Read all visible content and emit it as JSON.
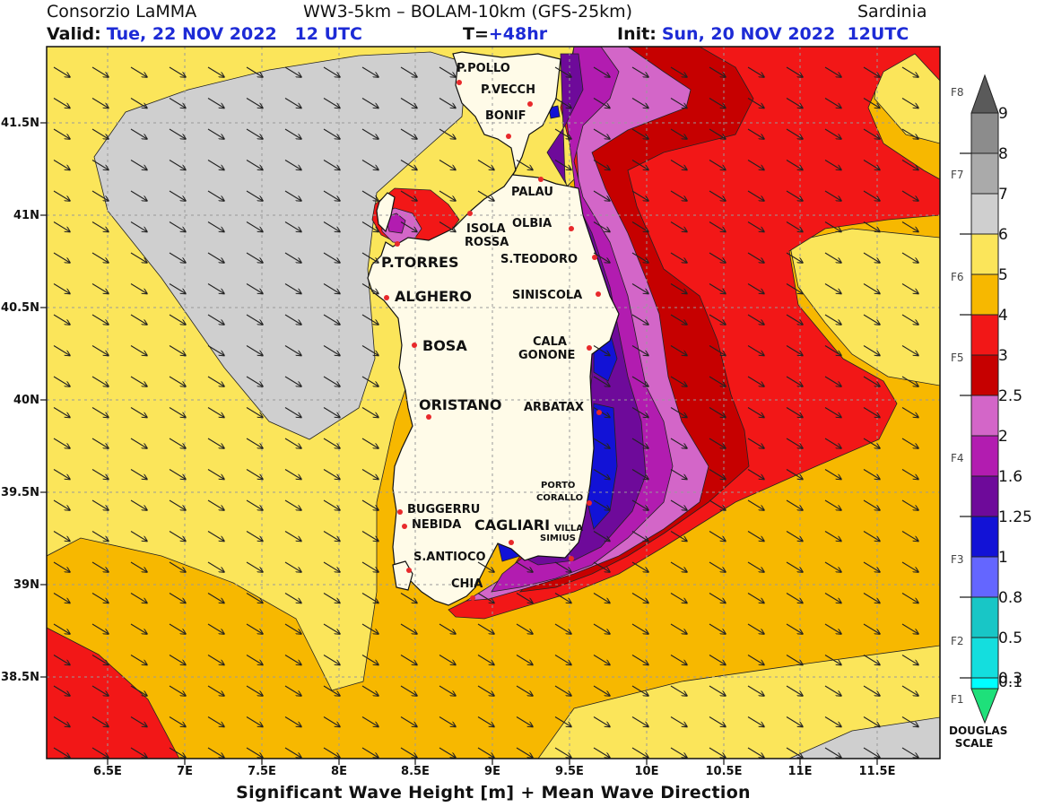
{
  "header": {
    "source": "Consorzio LaMMA",
    "model": "WW3-5km  –  BOLAM-10km (GFS-25km)",
    "region": "Sardinia",
    "valid_label": "Valid:",
    "valid_value": "Tue, 22 NOV 2022   12 UTC",
    "lead_label": "T=",
    "lead_value": "+48hr",
    "init_label": "Init:",
    "init_value": "Sun, 20 NOV 2022  12UTC"
  },
  "footer_title": "Significant Wave Height [m] + Mean Wave Direction",
  "axes": {
    "lat_ticks": [
      "41.5N",
      "41N",
      "40.5N",
      "40N",
      "39.5N",
      "39N",
      "38.5N"
    ],
    "lon_ticks": [
      "6.5E",
      "7E",
      "7.5E",
      "8E",
      "8.5E",
      "9E",
      "9.5E",
      "10E",
      "10.5E",
      "11E",
      "11.5E"
    ]
  },
  "legend": {
    "title_line1": "DOUGLAS",
    "title_line2": "SCALE",
    "values": [
      "9",
      "8",
      "7",
      "6",
      "5",
      "4",
      "3",
      "2.5",
      "2",
      "1.6",
      "1.25",
      "1",
      "0.8",
      "0.5",
      "0.3",
      "0.1"
    ],
    "douglas": [
      "F8",
      "F7",
      "F6",
      "F5",
      "F4",
      "F3",
      "F2",
      "F1"
    ],
    "colors": {
      "above_9": "#5a5a5a",
      "8_9": "#8c8c8c",
      "7_8": "#aaaaaa",
      "6_7": "#cfcfcf",
      "5_6": "#fbe55a",
      "4_5": "#f7b800",
      "3_4": "#f21717",
      "2_5_3": "#c60000",
      "2_2_5": "#d366c8",
      "1_6_2": "#b21cb0",
      "1_25_1_6": "#6e0a9a",
      "1_1_25": "#1212d6",
      "0_8_1": "#6466ff",
      "0_5_0_8": "#18c6c6",
      "0_3_0_5": "#14dede",
      "0_1_0_3": "#00ffff",
      "below_0_1": "#1ee07a"
    }
  },
  "colors": {
    "land": "#fffbe8",
    "marker": "#e8292b"
  },
  "towns": {
    "p_pollo": "P.POLLO",
    "p_vecch": "P.VECCH",
    "bonif": "BONIF",
    "palau": "PALAU",
    "olbia": "OLBIA",
    "isola_rossa_1": "ISOLA",
    "isola_rossa_2": "ROSSA",
    "p_torres": "P.TORRES",
    "s_teodoro": "S.TEODORO",
    "alghero": "ALGHERO",
    "siniscola": "SINISCOLA",
    "bosa": "BOSA",
    "cala_gonone_1": "CALA",
    "cala_gonone_2": "GONONE",
    "oristano": "ORISTANO",
    "arbatax": "ARBATAX",
    "porto_corallo_1": "PORTO",
    "porto_corallo_2": "CORALLO",
    "buggerru": "BUGGERRU",
    "nebida": "NEBIDA",
    "cagliari": "CAGLIARI",
    "villa_simius_1": "VILLA",
    "villa_simius_2": "SIMIUS",
    "s_antioco": "S.ANTIOCO",
    "chia": "CHIA"
  }
}
